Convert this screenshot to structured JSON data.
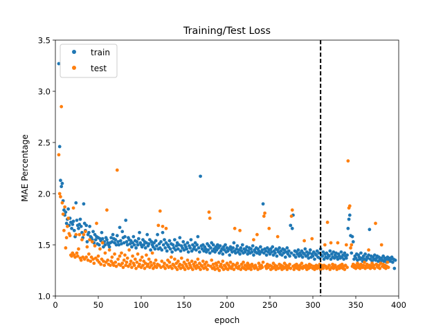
{
  "chart_data": {
    "type": "scatter",
    "title": "Training/Test Loss",
    "xlabel": "epoch",
    "ylabel": "MAE Percentage",
    "xlim": [
      0,
      400
    ],
    "ylim": [
      1.0,
      3.5
    ],
    "xticks": [
      0,
      50,
      100,
      150,
      200,
      250,
      300,
      350,
      400
    ],
    "yticks": [
      1.0,
      1.5,
      2.0,
      2.5,
      3.0,
      3.5
    ],
    "xtick_labels": [
      "0",
      "50",
      "100",
      "150",
      "200",
      "250",
      "300",
      "350",
      "400"
    ],
    "ytick_labels": [
      "1.0",
      "1.5",
      "2.0",
      "2.5",
      "3.0",
      "3.5"
    ],
    "grid": false,
    "legend_position": "top-left",
    "vline": {
      "x": 309,
      "style": "dashed",
      "color": "#000000"
    },
    "series": [
      {
        "name": "train",
        "color": "#1f77b4",
        "start": 4,
        "step": 1,
        "values": [
          3.27,
          2.46,
          2.13,
          2.07,
          2.1,
          1.93,
          1.84,
          1.79,
          1.82,
          1.71,
          1.75,
          1.85,
          1.69,
          1.76,
          1.72,
          1.66,
          1.7,
          1.73,
          1.64,
          1.58,
          1.91,
          1.74,
          1.69,
          1.66,
          1.7,
          1.75,
          1.68,
          1.62,
          1.57,
          1.9,
          1.71,
          1.64,
          1.69,
          1.53,
          1.6,
          1.62,
          1.68,
          1.58,
          1.57,
          1.55,
          1.63,
          1.52,
          1.6,
          1.55,
          1.58,
          1.51,
          1.57,
          1.5,
          1.56,
          1.54,
          1.62,
          1.56,
          1.48,
          1.53,
          1.5,
          1.57,
          1.55,
          1.52,
          1.5,
          1.48,
          1.52,
          1.57,
          1.53,
          1.6,
          1.56,
          1.52,
          1.55,
          1.5,
          1.59,
          1.53,
          1.5,
          1.67,
          1.54,
          1.51,
          1.63,
          1.57,
          1.52,
          1.58,
          1.74,
          1.53,
          1.5,
          1.57,
          1.55,
          1.51,
          1.54,
          1.48,
          1.52,
          1.58,
          1.5,
          1.54,
          1.47,
          1.53,
          1.5,
          1.56,
          1.62,
          1.52,
          1.5,
          1.48,
          1.55,
          1.5,
          1.53,
          1.47,
          1.52,
          1.6,
          1.49,
          1.51,
          1.55,
          1.45,
          1.53,
          1.5,
          1.48,
          1.52,
          1.46,
          1.54,
          1.49,
          1.6,
          1.46,
          1.51,
          1.47,
          1.53,
          1.45,
          1.62,
          1.5,
          1.55,
          1.47,
          1.52,
          1.44,
          1.5,
          1.48,
          1.54,
          1.46,
          1.51,
          1.43,
          1.5,
          1.47,
          1.55,
          1.45,
          1.49,
          1.52,
          1.46,
          1.5,
          1.57,
          1.44,
          1.49,
          1.47,
          1.53,
          1.45,
          1.5,
          1.48,
          1.46,
          1.52,
          1.43,
          1.49,
          1.47,
          1.55,
          1.44,
          1.5,
          1.46,
          1.48,
          1.52,
          1.45,
          1.5,
          1.58,
          1.47,
          1.43,
          2.17,
          1.49,
          1.46,
          1.5,
          1.44,
          1.48,
          1.46,
          1.43,
          1.51,
          1.45,
          1.49,
          1.42,
          1.47,
          1.52,
          1.44,
          1.5,
          1.46,
          1.43,
          1.48,
          1.45,
          1.5,
          1.47,
          1.42,
          1.49,
          1.44,
          1.46,
          1.41,
          1.48,
          1.45,
          1.5,
          1.43,
          1.47,
          1.44,
          1.46,
          1.4,
          1.48,
          1.45,
          1.43,
          1.47,
          1.52,
          1.44,
          1.42,
          1.46,
          1.49,
          1.43,
          1.45,
          1.41,
          1.47,
          1.44,
          1.5,
          1.42,
          1.46,
          1.43,
          1.45,
          1.48,
          1.41,
          1.44,
          1.47,
          1.42,
          1.46,
          1.43,
          1.49,
          1.4,
          1.45,
          1.43,
          1.47,
          1.42,
          1.46,
          1.44,
          1.41,
          1.48,
          1.43,
          1.45,
          1.9,
          1.42,
          1.46,
          1.44,
          1.4,
          1.47,
          1.43,
          1.45,
          1.41,
          1.46,
          1.43,
          1.48,
          1.4,
          1.44,
          1.42,
          1.46,
          1.39,
          1.45,
          1.43,
          1.47,
          1.41,
          1.44,
          1.4,
          1.46,
          1.42,
          1.45,
          1.38,
          1.43,
          1.47,
          1.41,
          1.44,
          1.39,
          1.69,
          1.42,
          1.66,
          1.79,
          1.4,
          1.44,
          1.38,
          1.43,
          1.41,
          1.45,
          1.39,
          1.42,
          1.4,
          1.44,
          1.38,
          1.42,
          1.41,
          1.46,
          1.39,
          1.43,
          1.4,
          1.37,
          1.42,
          1.45,
          1.38,
          1.41,
          1.39,
          1.43,
          1.36,
          1.41,
          1.4,
          1.44,
          1.38,
          1.42,
          1.37,
          1.46,
          1.4,
          1.39,
          1.43,
          1.36,
          1.41,
          1.38,
          1.42,
          1.37,
          1.4,
          1.39,
          1.44,
          1.36,
          1.41,
          1.38,
          1.43,
          1.37,
          1.4,
          1.42,
          1.38,
          1.36,
          1.41,
          1.39,
          1.37,
          1.43,
          1.38,
          1.4,
          1.36,
          1.42,
          1.39,
          1.37,
          1.4,
          1.66,
          1.75,
          1.79,
          1.59,
          1.42,
          1.58,
          1.53,
          1.36,
          1.39,
          1.37,
          1.41,
          1.35,
          1.4,
          1.38,
          1.36,
          1.42,
          1.37,
          1.34,
          1.39,
          1.36,
          1.41,
          1.35,
          1.38,
          1.37,
          1.4,
          1.65,
          1.36,
          1.39,
          1.34,
          1.38,
          1.36,
          1.4,
          1.35,
          1.37,
          1.39,
          1.34,
          1.38,
          1.36,
          1.33,
          1.37,
          1.35,
          1.39,
          1.34,
          1.37,
          1.36,
          1.33,
          1.38,
          1.35,
          1.37,
          1.34,
          1.36,
          1.38,
          1.33,
          1.36,
          1.27,
          1.35
        ]
      },
      {
        "name": "test",
        "color": "#ff7f0e",
        "start": 4,
        "step": 1,
        "values": [
          2.38,
          2.0,
          1.97,
          2.85,
          1.91,
          1.8,
          1.64,
          1.87,
          1.47,
          1.57,
          1.68,
          1.76,
          1.61,
          1.59,
          1.4,
          1.39,
          1.42,
          1.86,
          1.4,
          1.38,
          1.6,
          1.42,
          1.39,
          1.46,
          1.6,
          1.37,
          1.35,
          1.55,
          1.38,
          1.6,
          1.36,
          1.63,
          1.38,
          1.48,
          1.35,
          1.41,
          1.55,
          1.34,
          1.38,
          1.53,
          1.36,
          1.32,
          1.49,
          1.37,
          1.71,
          1.35,
          1.39,
          1.33,
          1.46,
          1.31,
          1.36,
          1.52,
          1.34,
          1.3,
          1.42,
          1.33,
          1.84,
          1.35,
          1.31,
          1.45,
          1.3,
          1.34,
          1.38,
          1.32,
          1.3,
          1.41,
          1.33,
          1.29,
          2.23,
          1.36,
          1.31,
          1.39,
          1.3,
          1.42,
          1.32,
          1.28,
          1.35,
          1.4,
          1.3,
          1.33,
          1.37,
          1.29,
          1.45,
          1.31,
          1.34,
          1.28,
          1.39,
          1.32,
          1.3,
          1.36,
          1.27,
          1.33,
          1.41,
          1.29,
          1.31,
          1.35,
          1.28,
          1.38,
          1.3,
          1.34,
          1.27,
          1.32,
          1.4,
          1.29,
          1.31,
          1.36,
          1.28,
          1.33,
          1.3,
          1.42,
          1.27,
          1.32,
          1.29,
          1.35,
          1.28,
          1.31,
          1.69,
          1.3,
          1.83,
          1.28,
          1.34,
          1.68,
          1.29,
          1.32,
          1.27,
          1.66,
          1.3,
          1.35,
          1.28,
          1.33,
          1.29,
          1.38,
          1.27,
          1.31,
          1.3,
          1.36,
          1.28,
          1.32,
          1.26,
          1.34,
          1.29,
          1.31,
          1.27,
          1.37,
          1.3,
          1.28,
          1.33,
          1.26,
          1.31,
          1.29,
          1.35,
          1.27,
          1.32,
          1.3,
          1.28,
          1.34,
          1.26,
          1.31,
          1.29,
          1.33,
          1.27,
          1.3,
          1.36,
          1.28,
          1.32,
          1.26,
          1.3,
          1.29,
          1.34,
          1.27,
          1.31,
          1.28,
          1.33,
          1.26,
          1.3,
          1.82,
          1.76,
          1.29,
          1.35,
          1.27,
          1.31,
          1.28,
          1.26,
          1.32,
          1.3,
          1.27,
          1.33,
          1.25,
          1.29,
          1.31,
          1.28,
          1.34,
          1.26,
          1.3,
          1.29,
          1.27,
          1.32,
          1.26,
          1.3,
          1.28,
          1.33,
          1.27,
          1.29,
          1.31,
          1.26,
          1.66,
          1.3,
          1.28,
          1.32,
          1.27,
          1.29,
          1.64,
          1.26,
          1.31,
          1.28,
          1.33,
          1.27,
          1.3,
          1.26,
          1.29,
          1.32,
          1.27,
          1.3,
          1.28,
          1.26,
          1.31,
          1.29,
          1.55,
          1.27,
          1.3,
          1.28,
          1.6,
          1.26,
          1.32,
          1.29,
          1.27,
          1.3,
          1.28,
          1.33,
          1.78,
          1.81,
          1.29,
          1.27,
          1.31,
          1.28,
          1.66,
          1.3,
          1.26,
          1.29,
          1.27,
          1.32,
          1.28,
          1.3,
          1.26,
          1.29,
          1.58,
          1.27,
          1.31,
          1.28,
          1.3,
          1.26,
          1.29,
          1.27,
          1.32,
          1.28,
          1.3,
          1.26,
          1.29,
          1.28,
          1.31,
          1.27,
          1.78,
          1.84,
          1.29,
          1.26,
          1.3,
          1.28,
          1.31,
          1.27,
          1.29,
          1.26,
          1.3,
          1.28,
          1.32,
          1.27,
          1.29,
          1.54,
          1.28,
          1.3,
          1.26,
          1.29,
          1.27,
          1.31,
          1.28,
          1.3,
          1.56,
          1.27,
          1.29,
          1.26,
          1.28,
          1.3,
          1.27,
          1.29,
          1.28,
          1.31,
          1.26,
          1.3,
          1.28,
          1.27,
          1.3,
          1.5,
          1.29,
          1.27,
          1.72,
          1.28,
          1.3,
          1.26,
          1.52,
          1.28,
          1.31,
          1.27,
          1.29,
          1.3,
          1.28,
          1.26,
          1.52,
          1.29,
          1.27,
          1.3,
          1.28,
          1.31,
          1.27,
          1.29,
          1.26,
          1.3,
          1.5,
          1.28,
          2.32,
          1.86,
          1.88,
          1.47,
          1.5,
          1.29,
          1.31,
          1.28,
          1.3,
          1.27,
          1.29,
          1.32,
          1.28,
          1.3,
          1.27,
          1.31,
          1.29,
          1.28,
          1.3,
          1.33,
          1.27,
          1.29,
          1.31,
          1.28,
          1.45,
          1.3,
          1.27,
          1.29,
          1.32,
          1.28,
          1.3,
          1.27,
          1.71,
          1.31,
          1.29,
          1.28,
          1.3,
          1.27,
          1.32,
          1.5,
          1.29,
          1.31,
          1.28,
          1.3,
          1.27,
          1.29,
          1.33,
          1.28
        ]
      }
    ]
  }
}
